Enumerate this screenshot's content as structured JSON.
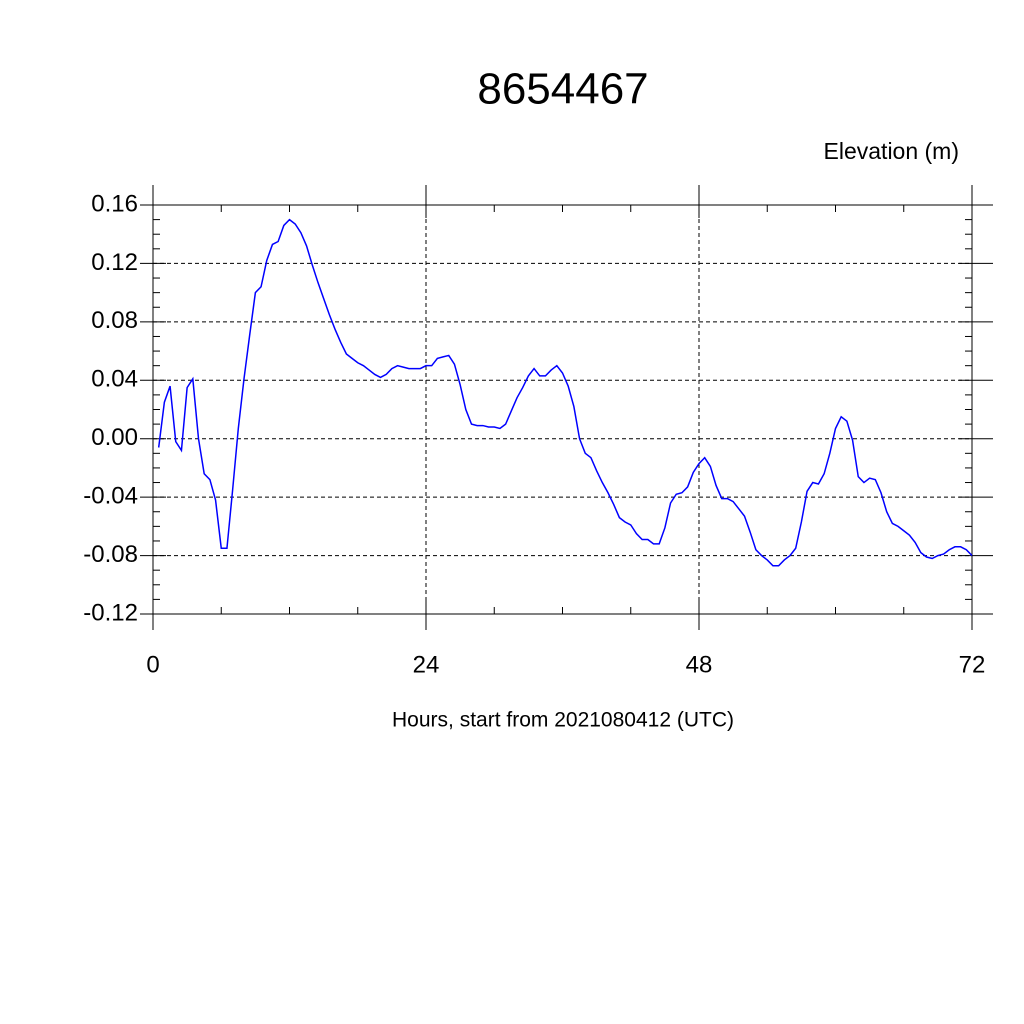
{
  "chart_data": {
    "type": "line",
    "title": "8654467",
    "y_label": "Elevation (m)",
    "x_label": "Hours, start from 2021080412 (UTC)",
    "xlim": [
      0,
      72
    ],
    "ylim": [
      -0.12,
      0.16
    ],
    "xticks": [
      0,
      24,
      48,
      72
    ],
    "yticks": [
      -0.12,
      -0.08,
      -0.04,
      {
        "value": 0,
        "label": "0.00"
      },
      0.04,
      0.08,
      0.12,
      0.16
    ],
    "grid": true,
    "x": [
      0.5,
      1,
      1.5,
      2,
      2.5,
      3,
      3.5,
      4,
      4.5,
      5,
      5.5,
      6,
      6.5,
      7,
      7.5,
      8,
      8.5,
      9,
      9.5,
      10,
      10.5,
      11,
      11.5,
      12,
      12.5,
      13,
      13.5,
      14,
      14.5,
      15,
      15.5,
      16,
      16.5,
      17,
      17.5,
      18,
      18.5,
      19,
      19.5,
      20,
      20.5,
      21,
      21.5,
      22,
      22.5,
      23,
      23.5,
      24,
      24.5,
      25,
      25.5,
      26,
      26.5,
      27,
      27.5,
      28,
      28.5,
      29,
      29.5,
      30,
      30.5,
      31,
      31.5,
      32,
      32.5,
      33,
      33.5,
      34,
      34.5,
      35,
      35.5,
      36,
      36.5,
      37,
      37.5,
      38,
      38.5,
      39,
      39.5,
      40,
      40.5,
      41,
      41.5,
      42,
      42.5,
      43,
      43.5,
      44,
      44.5,
      45,
      45.5,
      46,
      46.5,
      47,
      47.5,
      48,
      48.5,
      49,
      49.5,
      50,
      50.5,
      51,
      51.5,
      52,
      52.5,
      53,
      53.5,
      54,
      54.5,
      55,
      55.5,
      56,
      56.5,
      57,
      57.5,
      58,
      58.5,
      59,
      59.5,
      60,
      60.5,
      61,
      61.5,
      62,
      62.5,
      63,
      63.5,
      64,
      64.5,
      65,
      65.5,
      66,
      66.5,
      67,
      67.5,
      68,
      68.5,
      69,
      69.5,
      70,
      70.5,
      71,
      71.5,
      72
    ],
    "series": [
      {
        "name": "Elevation",
        "color": "#0000ff",
        "values": [
          -0.006,
          0.025,
          0.036,
          -0.002,
          -0.008,
          0.035,
          0.041,
          0.0,
          -0.024,
          -0.028,
          -0.042,
          -0.075,
          -0.075,
          -0.035,
          0.007,
          0.041,
          0.071,
          0.1,
          0.104,
          0.122,
          0.133,
          0.135,
          0.146,
          0.15,
          0.147,
          0.141,
          0.132,
          0.119,
          0.107,
          0.096,
          0.085,
          0.075,
          0.066,
          0.058,
          0.055,
          0.052,
          0.05,
          0.047,
          0.044,
          0.042,
          0.044,
          0.048,
          0.05,
          0.049,
          0.048,
          0.048,
          0.048,
          0.05,
          0.05,
          0.055,
          0.056,
          0.057,
          0.051,
          0.037,
          0.02,
          0.01,
          0.009,
          0.009,
          0.008,
          0.008,
          0.007,
          0.01,
          0.019,
          0.028,
          0.035,
          0.043,
          0.048,
          0.043,
          0.043,
          0.047,
          0.05,
          0.045,
          0.036,
          0.022,
          0.0,
          -0.01,
          -0.013,
          -0.022,
          -0.03,
          -0.037,
          -0.045,
          -0.054,
          -0.057,
          -0.059,
          -0.065,
          -0.069,
          -0.069,
          -0.072,
          -0.072,
          -0.061,
          -0.044,
          -0.038,
          -0.037,
          -0.033,
          -0.023,
          -0.017,
          -0.013,
          -0.019,
          -0.032,
          -0.041,
          -0.041,
          -0.043,
          -0.048,
          -0.053,
          -0.064,
          -0.076,
          -0.08,
          -0.083,
          -0.087,
          -0.087,
          -0.083,
          -0.08,
          -0.075,
          -0.057,
          -0.036,
          -0.03,
          -0.031,
          -0.024,
          -0.01,
          0.007,
          0.015,
          0.012,
          -0.001,
          -0.026,
          -0.03,
          -0.027,
          -0.028,
          -0.037,
          -0.05,
          -0.058,
          -0.06,
          -0.063,
          -0.066,
          -0.071,
          -0.078,
          -0.081,
          -0.082,
          -0.08,
          -0.079,
          -0.076,
          -0.074,
          -0.074,
          -0.076,
          -0.08
        ]
      }
    ]
  }
}
